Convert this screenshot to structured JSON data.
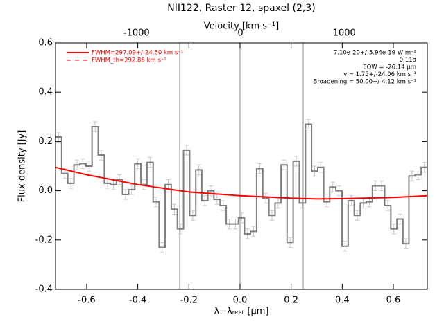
{
  "chart_data": {
    "type": "step",
    "title": "NII122, Raster 12, spaxel (2,3)",
    "xlabel": "λ−λᵣₑₛₜ [μm]",
    "ylabel": "Flux density [Jy]",
    "x2label": "Velocity [km s⁻¹]",
    "xlim": [
      -0.722,
      0.733
    ],
    "ylim": [
      -0.4,
      0.6
    ],
    "x2lim": [
      -1780,
      1800
    ],
    "xticks": [
      -0.6,
      -0.4,
      -0.2,
      {
        "value": 0,
        "label": "0.0"
      },
      0.2,
      0.4,
      0.6
    ],
    "yticks": [
      -0.4,
      -0.2,
      {
        "value": 0,
        "label": "0.0"
      },
      0.2,
      0.4,
      0.6
    ],
    "x2ticks": [
      -1000,
      0,
      1000
    ],
    "vlines": [
      -0.236,
      0,
      0.247
    ],
    "x": [
      -0.71,
      -0.686,
      -0.662,
      -0.638,
      -0.615,
      -0.591,
      -0.567,
      -0.543,
      -0.519,
      -0.495,
      -0.472,
      -0.448,
      -0.424,
      -0.4,
      -0.376,
      -0.352,
      -0.328,
      -0.305,
      -0.281,
      -0.257,
      -0.233,
      -0.209,
      -0.185,
      -0.161,
      -0.138,
      -0.114,
      -0.09,
      -0.066,
      -0.042,
      -0.018,
      0.006,
      0.029,
      0.053,
      0.077,
      0.101,
      0.125,
      0.149,
      0.172,
      0.196,
      0.22,
      0.244,
      0.268,
      0.292,
      0.316,
      0.339,
      0.363,
      0.387,
      0.411,
      0.435,
      0.459,
      0.482,
      0.506,
      0.53,
      0.554,
      0.578,
      0.602,
      0.626,
      0.649,
      0.673,
      0.697,
      0.721
    ],
    "series": [
      {
        "name": "data",
        "color": "#7f7f7f",
        "values": [
          0.218,
          0.07,
          0.03,
          0.105,
          0.11,
          0.1,
          0.26,
          0.145,
          0.03,
          0.025,
          0.045,
          -0.015,
          0.005,
          0.11,
          0.025,
          0.115,
          -0.045,
          -0.23,
          0.025,
          -0.075,
          -0.155,
          0.165,
          -0.1,
          0.085,
          -0.04,
          0,
          -0.035,
          -0.06,
          -0.135,
          -0.135,
          -0.11,
          -0.175,
          -0.165,
          0.09,
          -0.03,
          -0.1,
          -0.05,
          0.105,
          -0.21,
          0.12,
          -0.05,
          0.27,
          0.08,
          0.095,
          -0.045,
          0.015,
          0,
          -0.225,
          -0.04,
          -0.1,
          -0.05,
          -0.045,
          0.02,
          0.02,
          -0.06,
          -0.155,
          -0.115,
          -0.215,
          0.06,
          0.065,
          0.095
        ],
        "errors": [
          0.02,
          0.02,
          0.02,
          0.02,
          0.02,
          0.02,
          0.02,
          0.02,
          0.02,
          0.02,
          0.02,
          0.02,
          0.02,
          0.02,
          0.02,
          0.02,
          0.02,
          0.02,
          0.02,
          0.02,
          0.02,
          0.02,
          0.02,
          0.02,
          0.02,
          0.02,
          0.02,
          0.02,
          0.02,
          0.02,
          0.02,
          0.02,
          0.02,
          0.02,
          0.02,
          0.02,
          0.02,
          0.02,
          0.02,
          0.02,
          0.02,
          0.02,
          0.02,
          0.02,
          0.02,
          0.02,
          0.02,
          0.02,
          0.02,
          0.02,
          0.02,
          0.02,
          0.02,
          0.02,
          0.02,
          0.02,
          0.02,
          0.02,
          0.02,
          0.02,
          0.02
        ]
      }
    ],
    "fit": {
      "name": "FWHM=297.09+/-24.50 km s⁻¹",
      "color": "#ff0000",
      "x": [
        -0.722,
        -0.6,
        -0.4,
        -0.2,
        0,
        0.2,
        0.3,
        0.4,
        0.6,
        0.733
      ],
      "values": [
        0.095,
        0.065,
        0.025,
        -0.005,
        -0.02,
        -0.03,
        -0.033,
        -0.032,
        -0.027,
        -0.02
      ]
    },
    "fit_th": {
      "name": "FWHM_th=292.86 km s⁻¹",
      "color": "#ff0000"
    },
    "annotations": [
      "7.10e-20+/-5.94e-19 W m⁻²",
      "0.11σ",
      "EQW = -26.14 μm",
      "v = 1.75+/-24.06 km s⁻¹",
      "Broadening = 50.00+/-4.12 km s⁻¹"
    ]
  }
}
